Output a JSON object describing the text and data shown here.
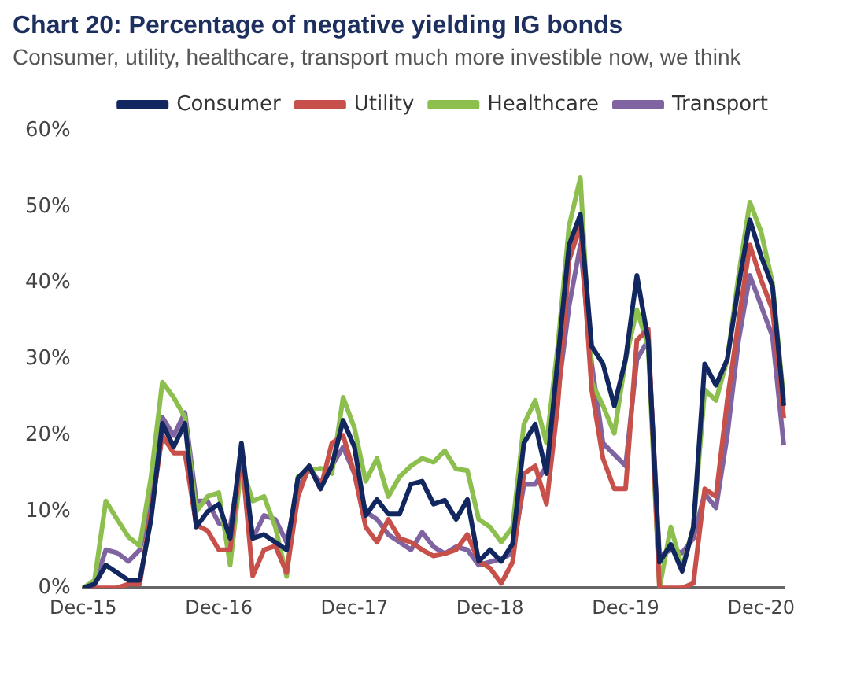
{
  "chart_data": {
    "type": "line",
    "title": "Chart 20: Percentage of negative yielding IG bonds",
    "subtitle": "Consumer, utility, healthcare, transport much more investible now, we think",
    "categories": [
      "Dec-15",
      null,
      null,
      null,
      null,
      null,
      null,
      null,
      null,
      null,
      null,
      null,
      "Dec-16",
      null,
      null,
      null,
      null,
      null,
      null,
      null,
      null,
      null,
      null,
      null,
      "Dec-17",
      null,
      null,
      null,
      null,
      null,
      null,
      null,
      null,
      null,
      null,
      null,
      "Dec-18",
      null,
      null,
      null,
      null,
      null,
      null,
      null,
      null,
      null,
      null,
      null,
      "Dec-19",
      null,
      null,
      null,
      null,
      null,
      null,
      null,
      null,
      null,
      null,
      null,
      "Dec-20",
      null,
      null
    ],
    "series": [
      {
        "name": "Consumer",
        "color": "#12275f",
        "values": [
          0,
          0.5,
          3,
          2,
          1,
          1,
          9,
          21.6,
          18.5,
          21.6,
          8,
          10,
          11,
          6.5,
          19,
          6.5,
          7,
          6,
          5,
          14.4,
          16,
          13,
          16,
          22,
          18.5,
          9.5,
          11.6,
          9.7,
          9.7,
          13.6,
          14,
          11,
          11.5,
          9,
          11.6,
          3.5,
          5,
          3.5,
          5.8,
          19,
          21.5,
          15,
          30,
          45,
          49,
          31.7,
          29.4,
          23.9,
          30,
          41,
          32.5,
          3.4,
          5.7,
          2.2,
          8,
          29.4,
          26.6,
          30,
          39.6,
          48.3,
          43.5,
          39.6,
          23.9
        ]
      },
      {
        "name": "Utility",
        "color": "#c8504b",
        "values": [
          0,
          0,
          0,
          0,
          0.5,
          0.5,
          10,
          20,
          17.7,
          17.7,
          8.3,
          7.5,
          5,
          5,
          17.7,
          1.6,
          5,
          5.5,
          2,
          12,
          16,
          13,
          19,
          20,
          15,
          8,
          6,
          9,
          6.5,
          6,
          5,
          4.2,
          4.5,
          5,
          7,
          3.5,
          2.6,
          0.6,
          3.4,
          15,
          16,
          11,
          24,
          43,
          47.5,
          26,
          17,
          13,
          13,
          32.5,
          34,
          0,
          0,
          0,
          0.6,
          13,
          12,
          24.6,
          35,
          45,
          40.4,
          36.5,
          22.3
        ]
      },
      {
        "name": "Healthcare",
        "color": "#8cbf4e",
        "values": [
          0,
          1,
          11.4,
          9,
          6.7,
          5.5,
          14.6,
          27,
          25,
          22.4,
          10,
          12,
          12.5,
          3,
          16,
          11.4,
          12,
          8,
          1.5,
          14.6,
          15.4,
          15.7,
          15,
          25,
          21,
          14,
          17,
          12,
          14.6,
          16,
          17,
          16.5,
          18,
          15.6,
          15.4,
          9,
          8,
          6,
          8,
          21.5,
          24.6,
          19,
          31.7,
          47.5,
          53.8,
          27,
          23.9,
          20.3,
          30,
          36.5,
          31.7,
          0,
          8,
          2.6,
          8,
          26,
          24.6,
          30,
          41,
          50.6,
          46.7,
          40,
          24.6
        ]
      },
      {
        "name": "Transport",
        "color": "#8064a2",
        "values": [
          0,
          0.5,
          5,
          4.6,
          3.5,
          5,
          11.4,
          22.4,
          20,
          23,
          11.4,
          11.4,
          8.5,
          8,
          17,
          6.5,
          9.5,
          9,
          6,
          13,
          15.6,
          13.8,
          16,
          18.5,
          15,
          10,
          9,
          7,
          6,
          5,
          7.3,
          5.4,
          4.5,
          5.4,
          5,
          3,
          3.4,
          3.8,
          4.6,
          13.6,
          13.6,
          16,
          25.4,
          37,
          45,
          29.4,
          19,
          17.5,
          16,
          30,
          32.5,
          4.2,
          5,
          4.6,
          6.5,
          12.4,
          10.5,
          20,
          32.5,
          41,
          37,
          33,
          18.7
        ]
      }
    ],
    "ylim": [
      0,
      60
    ],
    "yticks": [
      {
        "value": 0,
        "label": "0%"
      },
      {
        "value": 10,
        "label": "10%"
      },
      {
        "value": 20,
        "label": "20%"
      },
      {
        "value": 30,
        "label": "30%"
      },
      {
        "value": 40,
        "label": "40%"
      },
      {
        "value": 50,
        "label": "50%"
      },
      {
        "value": 60,
        "label": "60%"
      }
    ],
    "legend": "top"
  }
}
